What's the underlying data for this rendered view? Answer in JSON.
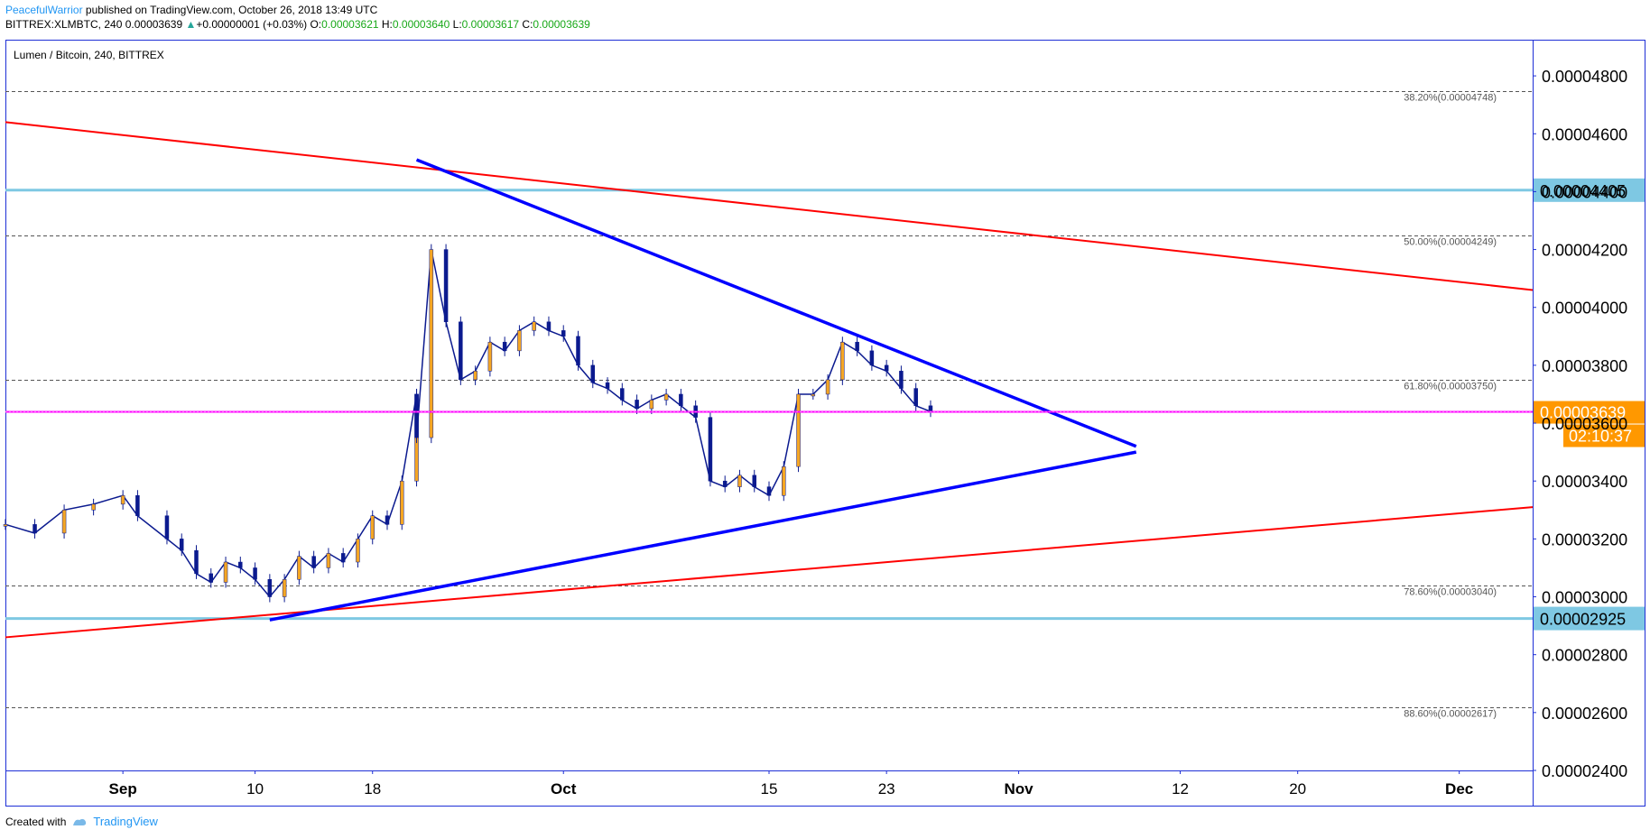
{
  "header": {
    "line1_author": "PeacefulWarrior",
    "line1_rest": " published on TradingView.com, October 26, 2018 13:49 UTC",
    "symbol": "BITTREX:XLMBTC, 240",
    "last": "0.00003639",
    "change": "+0.00000001 (+0.03%)",
    "open_label": "O:",
    "open": "0.00003621",
    "high_label": "H:",
    "high": "0.00003640",
    "low_label": "L:",
    "low": "0.00003617",
    "close_label": "C:",
    "close": "0.00003639"
  },
  "footer": {
    "created_with": "Created with",
    "brand": "TradingView",
    "logo_icon": "tradingview-logo-icon"
  },
  "chart_data": {
    "type": "candlestick",
    "title": "Lumen / Bitcoin, 240, BITTREX",
    "x_axis": {
      "ticks": [
        {
          "label": "Sep",
          "date": "2018-09-01",
          "bold": true
        },
        {
          "label": "10",
          "date": "2018-09-10",
          "bold": false
        },
        {
          "label": "18",
          "date": "2018-09-18",
          "bold": false
        },
        {
          "label": "Oct",
          "date": "2018-10-01",
          "bold": true
        },
        {
          "label": "15",
          "date": "2018-10-15",
          "bold": false
        },
        {
          "label": "23",
          "date": "2018-10-23",
          "bold": false
        },
        {
          "label": "Nov",
          "date": "2018-11-01",
          "bold": true
        },
        {
          "label": "12",
          "date": "2018-11-12",
          "bold": false
        },
        {
          "label": "20",
          "date": "2018-11-20",
          "bold": false
        },
        {
          "label": "Dec",
          "date": "2018-12-01",
          "bold": true
        }
      ],
      "range": [
        "2018-08-24",
        "2018-12-06"
      ]
    },
    "y_axis": {
      "range": [
        2.4e-05,
        4.925e-05
      ],
      "ticks": [
        "0.00004800",
        "0.00004600",
        "0.00004400",
        "0.00004200",
        "0.00004000",
        "0.00003800",
        "0.00003600",
        "0.00003400",
        "0.00003200",
        "0.00003000",
        "0.00002800",
        "0.00002600",
        "0.00002400"
      ]
    },
    "fib_levels": [
      {
        "label": "38.20%(0.00004748)",
        "value": 4.748e-05
      },
      {
        "label": "50.00%(0.00004249)",
        "value": 4.249e-05
      },
      {
        "label": "61.80%(0.00003750)",
        "value": 3.75e-05
      },
      {
        "label": "78.60%(0.00003040)",
        "value": 3.04e-05
      },
      {
        "label": "88.60%(0.00002617)",
        "value": 2.617e-05
      }
    ],
    "horizontal_levels": [
      {
        "label": "0.00004405",
        "value": 4.405e-05,
        "color": "#7ec8e3"
      },
      {
        "label": "0.00002925",
        "value": 2.925e-05,
        "color": "#7ec8e3"
      }
    ],
    "current_price": {
      "label": "0.00003639",
      "value": 3.639e-05,
      "countdown": "02:10:37",
      "line_color": "#ff00ff",
      "tag_color": "#ff9800"
    },
    "trendlines": [
      {
        "name": "red-upper-channel",
        "color": "#ff0000",
        "points": [
          [
            "2018-08-24",
            4.64e-05
          ],
          [
            "2018-12-06",
            4.06e-05
          ]
        ]
      },
      {
        "name": "red-lower-channel",
        "color": "#ff0000",
        "points": [
          [
            "2018-08-24",
            2.86e-05
          ],
          [
            "2018-12-06",
            3.31e-05
          ]
        ]
      },
      {
        "name": "blue-triangle-upper",
        "color": "#0000ff",
        "points": [
          [
            "2018-09-21",
            4.51e-05
          ],
          [
            "2018-11-09",
            3.52e-05
          ]
        ]
      },
      {
        "name": "blue-triangle-lower",
        "color": "#0000ff",
        "points": [
          [
            "2018-09-11",
            2.92e-05
          ],
          [
            "2018-11-09",
            3.5e-05
          ]
        ]
      }
    ],
    "series": [
      {
        "name": "XLMBTC",
        "values": [
          [
            "2018-08-24",
            3.25e-05
          ],
          [
            "2018-08-26",
            3.22e-05
          ],
          [
            "2018-08-28",
            3.3e-05
          ],
          [
            "2018-08-30",
            3.32e-05
          ],
          [
            "2018-09-01",
            3.35e-05
          ],
          [
            "2018-09-02",
            3.28e-05
          ],
          [
            "2018-09-04",
            3.2e-05
          ],
          [
            "2018-09-05",
            3.16e-05
          ],
          [
            "2018-09-06",
            3.08e-05
          ],
          [
            "2018-09-07",
            3.05e-05
          ],
          [
            "2018-09-08",
            3.12e-05
          ],
          [
            "2018-09-09",
            3.1e-05
          ],
          [
            "2018-09-10",
            3.06e-05
          ],
          [
            "2018-09-11",
            3e-05
          ],
          [
            "2018-09-12",
            3.06e-05
          ],
          [
            "2018-09-13",
            3.14e-05
          ],
          [
            "2018-09-14",
            3.1e-05
          ],
          [
            "2018-09-15",
            3.15e-05
          ],
          [
            "2018-09-16",
            3.12e-05
          ],
          [
            "2018-09-17",
            3.2e-05
          ],
          [
            "2018-09-18",
            3.28e-05
          ],
          [
            "2018-09-19",
            3.25e-05
          ],
          [
            "2018-09-20",
            3.4e-05
          ],
          [
            "2018-09-21",
            3.7e-05
          ],
          [
            "2018-09-21",
            3.55e-05
          ],
          [
            "2018-09-22",
            4.2e-05
          ],
          [
            "2018-09-23",
            3.95e-05
          ],
          [
            "2018-09-24",
            3.75e-05
          ],
          [
            "2018-09-25",
            3.78e-05
          ],
          [
            "2018-09-26",
            3.88e-05
          ],
          [
            "2018-09-27",
            3.85e-05
          ],
          [
            "2018-09-28",
            3.92e-05
          ],
          [
            "2018-09-29",
            3.95e-05
          ],
          [
            "2018-09-30",
            3.92e-05
          ],
          [
            "2018-10-01",
            3.9e-05
          ],
          [
            "2018-10-02",
            3.8e-05
          ],
          [
            "2018-10-03",
            3.74e-05
          ],
          [
            "2018-10-04",
            3.72e-05
          ],
          [
            "2018-10-05",
            3.68e-05
          ],
          [
            "2018-10-06",
            3.65e-05
          ],
          [
            "2018-10-07",
            3.68e-05
          ],
          [
            "2018-10-08",
            3.7e-05
          ],
          [
            "2018-10-09",
            3.66e-05
          ],
          [
            "2018-10-10",
            3.62e-05
          ],
          [
            "2018-10-11",
            3.4e-05
          ],
          [
            "2018-10-12",
            3.38e-05
          ],
          [
            "2018-10-13",
            3.42e-05
          ],
          [
            "2018-10-14",
            3.38e-05
          ],
          [
            "2018-10-15",
            3.35e-05
          ],
          [
            "2018-10-16",
            3.45e-05
          ],
          [
            "2018-10-17",
            3.7e-05
          ],
          [
            "2018-10-18",
            3.7e-05
          ],
          [
            "2018-10-19",
            3.75e-05
          ],
          [
            "2018-10-20",
            3.88e-05
          ],
          [
            "2018-10-21",
            3.85e-05
          ],
          [
            "2018-10-22",
            3.8e-05
          ],
          [
            "2018-10-23",
            3.78e-05
          ],
          [
            "2018-10-24",
            3.72e-05
          ],
          [
            "2018-10-25",
            3.66e-05
          ],
          [
            "2018-10-26",
            3.64e-05
          ]
        ]
      }
    ]
  }
}
